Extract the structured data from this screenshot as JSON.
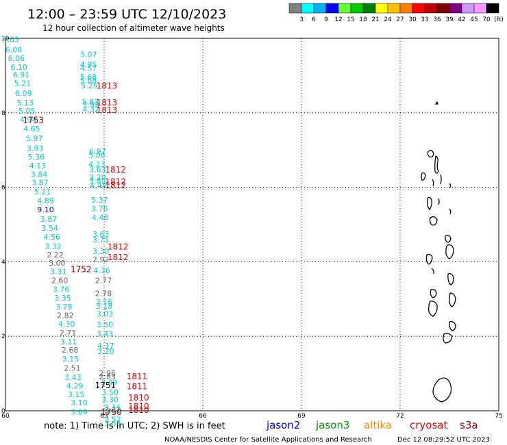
{
  "header": {
    "title": "12:00 – 23:59 UTC 12/10/2023",
    "subtitle": "12 hour collection of altimeter wave heights"
  },
  "colorbar": {
    "colors": [
      "#808080",
      "#00ffff",
      "#00b0f0",
      "#0000ff",
      "#66ff33",
      "#00cc00",
      "#008000",
      "#ffff00",
      "#ffc000",
      "#ff8000",
      "#ff0000",
      "#c00000",
      "#800000",
      "#800080",
      "#cc99ff",
      "#ff99ff",
      "#000000"
    ],
    "labels": [
      "3",
      "6",
      "9",
      "12",
      "15",
      "18",
      "21",
      "24",
      "27",
      "30",
      "33",
      "36",
      "39",
      "42",
      "45",
      "70",
      "(ft)"
    ]
  },
  "footer": {
    "note": "note: 1) Time is in UTC; 2) SWH is in feet",
    "credit": "NOAA/NESDIS Center for Satellite Applications and Research",
    "timestamp": "Dec 12 08:29:52 UTC 2023",
    "satellites": [
      {
        "name": "jason2",
        "color": "#0000cc"
      },
      {
        "name": "jason3",
        "color": "#009900"
      },
      {
        "name": "altika",
        "color": "#ff8800"
      },
      {
        "name": "cryosat",
        "color": "#dd0000"
      },
      {
        "name": "s3a",
        "color": "#990000"
      }
    ]
  },
  "chart_data": {
    "type": "scatter",
    "xlim": [
      60,
      75
    ],
    "ylim": [
      0,
      10
    ],
    "xticks": [
      60,
      63,
      66,
      69,
      72,
      75
    ],
    "yticks": [
      0,
      2,
      4,
      6,
      8,
      10
    ],
    "grid": true,
    "points": [
      {
        "x": 60.16,
        "y": 9.97,
        "v": "5.65",
        "c": "#00cccc"
      },
      {
        "x": 60.25,
        "y": 9.7,
        "v": "6.08",
        "c": "#00cccc"
      },
      {
        "x": 60.33,
        "y": 9.47,
        "v": "6.06",
        "c": "#00cccc"
      },
      {
        "x": 60.41,
        "y": 9.23,
        "v": "6.10",
        "c": "#00cccc"
      },
      {
        "x": 60.48,
        "y": 9.03,
        "v": "6.91",
        "c": "#00cccc"
      },
      {
        "x": 60.52,
        "y": 8.8,
        "v": "5.21",
        "c": "#00cccc"
      },
      {
        "x": 60.55,
        "y": 8.53,
        "v": "6.09",
        "c": "#00cccc"
      },
      {
        "x": 60.6,
        "y": 8.27,
        "v": "5.13",
        "c": "#00cccc"
      },
      {
        "x": 60.65,
        "y": 8.05,
        "v": "5.05",
        "c": "#00cccc"
      },
      {
        "x": 60.69,
        "y": 7.82,
        "v": "4.94",
        "c": "#00cccc"
      },
      {
        "x": 60.8,
        "y": 7.57,
        "v": "4.65",
        "c": "#00cccc"
      },
      {
        "x": 60.88,
        "y": 7.32,
        "v": "5.97",
        "c": "#00cccc"
      },
      {
        "x": 60.9,
        "y": 7.05,
        "v": "3.93",
        "c": "#00cccc"
      },
      {
        "x": 60.93,
        "y": 6.82,
        "v": "5.36",
        "c": "#00cccc"
      },
      {
        "x": 60.98,
        "y": 6.58,
        "v": "4.13",
        "c": "#00cccc"
      },
      {
        "x": 61.02,
        "y": 6.35,
        "v": "3.84",
        "c": "#00cccc"
      },
      {
        "x": 61.05,
        "y": 6.13,
        "v": "3.87",
        "c": "#00cccc"
      },
      {
        "x": 61.13,
        "y": 5.88,
        "v": "5.21",
        "c": "#00cccc"
      },
      {
        "x": 61.22,
        "y": 5.64,
        "v": "4.89",
        "c": "#00cccc"
      },
      {
        "x": 61.22,
        "y": 5.4,
        "v": "9.10",
        "c": "#0000cc"
      },
      {
        "x": 61.31,
        "y": 5.15,
        "v": "3.87",
        "c": "#00cccc"
      },
      {
        "x": 61.35,
        "y": 4.91,
        "v": "3.54",
        "c": "#00cccc"
      },
      {
        "x": 61.41,
        "y": 4.67,
        "v": "4.56",
        "c": "#00cccc"
      },
      {
        "x": 61.45,
        "y": 4.42,
        "v": "3.32",
        "c": "#00cccc"
      },
      {
        "x": 61.51,
        "y": 4.19,
        "v": "2.22",
        "c": "#666666"
      },
      {
        "x": 61.57,
        "y": 3.97,
        "v": "3.00",
        "c": "#666666"
      },
      {
        "x": 61.61,
        "y": 3.74,
        "v": "3.31",
        "c": "#00cccc"
      },
      {
        "x": 61.65,
        "y": 3.5,
        "v": "2.60",
        "c": "#666666"
      },
      {
        "x": 61.69,
        "y": 3.26,
        "v": "3.76",
        "c": "#00cccc"
      },
      {
        "x": 61.74,
        "y": 3.03,
        "v": "3.35",
        "c": "#00cccc"
      },
      {
        "x": 61.78,
        "y": 2.79,
        "v": "3.78",
        "c": "#00cccc"
      },
      {
        "x": 61.82,
        "y": 2.56,
        "v": "2.82",
        "c": "#666666"
      },
      {
        "x": 61.86,
        "y": 2.33,
        "v": "4.30",
        "c": "#00cccc"
      },
      {
        "x": 61.9,
        "y": 2.1,
        "v": "2.71",
        "c": "#666666"
      },
      {
        "x": 61.92,
        "y": 1.86,
        "v": "3.11",
        "c": "#00cccc"
      },
      {
        "x": 61.96,
        "y": 1.64,
        "v": "2.68",
        "c": "#666666"
      },
      {
        "x": 61.98,
        "y": 1.4,
        "v": "3.15",
        "c": "#00cccc"
      },
      {
        "x": 62.03,
        "y": 1.15,
        "v": "2.51",
        "c": "#666666"
      },
      {
        "x": 62.05,
        "y": 0.9,
        "v": "3.43",
        "c": "#00cccc"
      },
      {
        "x": 62.11,
        "y": 0.67,
        "v": "4.29",
        "c": "#00cccc"
      },
      {
        "x": 62.15,
        "y": 0.44,
        "v": "3.15",
        "c": "#00cccc"
      },
      {
        "x": 62.24,
        "y": 0.22,
        "v": "3.10",
        "c": "#00cccc"
      },
      {
        "x": 62.24,
        "y": -0.03,
        "v": "3.69",
        "c": "#00cccc"
      },
      {
        "x": 62.53,
        "y": 9.57,
        "v": "5.07",
        "c": "#00cccc"
      },
      {
        "x": 62.52,
        "y": 9.3,
        "v": "4.95",
        "c": "#00cccc"
      },
      {
        "x": 62.52,
        "y": 9.2,
        "v": "4.57",
        "c": "#00cccc"
      },
      {
        "x": 62.52,
        "y": 8.97,
        "v": "5.68",
        "c": "#00cccc"
      },
      {
        "x": 62.52,
        "y": 8.87,
        "v": "5.68",
        "c": "#00cccc"
      },
      {
        "x": 62.55,
        "y": 8.73,
        "v": "5.25",
        "c": "#00cccc"
      },
      {
        "x": 62.58,
        "y": 8.3,
        "v": "5.83",
        "c": "#00cccc"
      },
      {
        "x": 62.6,
        "y": 8.22,
        "v": "5.93",
        "c": "#00cccc"
      },
      {
        "x": 62.6,
        "y": 8.1,
        "v": "4.32",
        "c": "#00cccc"
      },
      {
        "x": 62.8,
        "y": 6.97,
        "v": "6.97",
        "c": "#00cccc"
      },
      {
        "x": 62.78,
        "y": 6.87,
        "v": "5.06",
        "c": "#00cccc"
      },
      {
        "x": 62.78,
        "y": 6.62,
        "v": "4.23",
        "c": "#00cccc"
      },
      {
        "x": 62.8,
        "y": 6.48,
        "v": "3.63",
        "c": "#00cccc"
      },
      {
        "x": 62.8,
        "y": 6.27,
        "v": "3.20",
        "c": "#00cccc"
      },
      {
        "x": 62.8,
        "y": 6.18,
        "v": "3.80",
        "c": "#00cccc"
      },
      {
        "x": 62.82,
        "y": 6.05,
        "v": "4.48",
        "c": "#00cccc"
      },
      {
        "x": 62.86,
        "y": 5.66,
        "v": "5.37",
        "c": "#00cccc"
      },
      {
        "x": 62.86,
        "y": 5.43,
        "v": "3.76",
        "c": "#00cccc"
      },
      {
        "x": 62.88,
        "y": 5.19,
        "v": "4.46",
        "c": "#00cccc"
      },
      {
        "x": 62.9,
        "y": 4.74,
        "v": "3.63",
        "c": "#00cccc"
      },
      {
        "x": 62.9,
        "y": 4.6,
        "v": "3.71",
        "c": "#00cccc"
      },
      {
        "x": 62.9,
        "y": 4.28,
        "v": "3.30",
        "c": "#00cccc"
      },
      {
        "x": 62.9,
        "y": 4.06,
        "v": "2.92",
        "c": "#666666"
      },
      {
        "x": 62.93,
        "y": 3.77,
        "v": "4.36",
        "c": "#00cccc"
      },
      {
        "x": 62.98,
        "y": 3.5,
        "v": "2.77",
        "c": "#666666"
      },
      {
        "x": 62.98,
        "y": 3.15,
        "v": "2.78",
        "c": "#666666"
      },
      {
        "x": 63,
        "y": 2.93,
        "v": "3.16",
        "c": "#00cccc"
      },
      {
        "x": 63.0,
        "y": 2.81,
        "v": "3.18",
        "c": "#00cccc"
      },
      {
        "x": 63.02,
        "y": 2.6,
        "v": "3.03",
        "c": "#00cccc"
      },
      {
        "x": 63.02,
        "y": 2.32,
        "v": "3.50",
        "c": "#00cccc"
      },
      {
        "x": 63.02,
        "y": 2.07,
        "v": "3.43",
        "c": "#00cccc"
      },
      {
        "x": 63.05,
        "y": 1.75,
        "v": "4.17",
        "c": "#00cccc"
      },
      {
        "x": 63.05,
        "y": 1.6,
        "v": "3.20",
        "c": "#00cccc"
      },
      {
        "x": 63.1,
        "y": 1.01,
        "v": "2.96",
        "c": "#666666"
      },
      {
        "x": 63.1,
        "y": 0.92,
        "v": "2.83",
        "c": "#666666"
      },
      {
        "x": 63.15,
        "y": 0.76,
        "v": "3.49",
        "c": "#00cccc"
      },
      {
        "x": 63.18,
        "y": 0.5,
        "v": "3.50",
        "c": "#00cccc"
      },
      {
        "x": 63.18,
        "y": 0.3,
        "v": "3.30",
        "c": "#00cccc"
      },
      {
        "x": 63.25,
        "y": 0.1,
        "v": "3.34",
        "c": "#00cccc"
      },
      {
        "x": 63.25,
        "y": 0.02,
        "v": "3.23",
        "c": "#00cccc"
      },
      {
        "x": 63.26,
        "y": -0.23,
        "v": "3.52",
        "c": "#00cccc"
      },
      {
        "x": 63.26,
        "y": -0.34,
        "v": "3.56",
        "c": "#00cccc"
      }
    ],
    "passes": [
      {
        "x": 60.85,
        "y": 7.8,
        "label": "1753",
        "c": "#990000"
      },
      {
        "x": 63.08,
        "y": 8.72,
        "label": "1813",
        "c": "#dd0000"
      },
      {
        "x": 63.08,
        "y": 8.27,
        "label": "1813",
        "c": "#dd0000"
      },
      {
        "x": 63.08,
        "y": 8.07,
        "label": "1813",
        "c": "#dd0000"
      },
      {
        "x": 63.35,
        "y": 6.47,
        "label": "1812",
        "c": "#dd0000"
      },
      {
        "x": 63.35,
        "y": 6.15,
        "label": "1812",
        "c": "#dd0000"
      },
      {
        "x": 63.35,
        "y": 6.05,
        "label": "1812",
        "c": "#dd0000"
      },
      {
        "x": 63.42,
        "y": 4.4,
        "label": "1812",
        "c": "#dd0000"
      },
      {
        "x": 63.42,
        "y": 4.12,
        "label": "1812",
        "c": "#dd0000"
      },
      {
        "x": 62.3,
        "y": 3.8,
        "label": "1752",
        "c": "#990000"
      },
      {
        "x": 64.0,
        "y": 0.92,
        "label": "1811",
        "c": "#dd0000"
      },
      {
        "x": 64.0,
        "y": 0.65,
        "label": "1811",
        "c": "#dd0000"
      },
      {
        "x": 63.04,
        "y": 0.68,
        "label": "1751",
        "c": "#000000"
      },
      {
        "x": 64.05,
        "y": 0.35,
        "label": "1810",
        "c": "#dd0000"
      },
      {
        "x": 64.05,
        "y": 0.12,
        "label": "1810",
        "c": "#dd0000"
      },
      {
        "x": 64.05,
        "y": 0.02,
        "label": "1810",
        "c": "#dd0000"
      },
      {
        "x": 63.22,
        "y": -0.04,
        "label": "1750",
        "c": "#990000"
      }
    ]
  }
}
